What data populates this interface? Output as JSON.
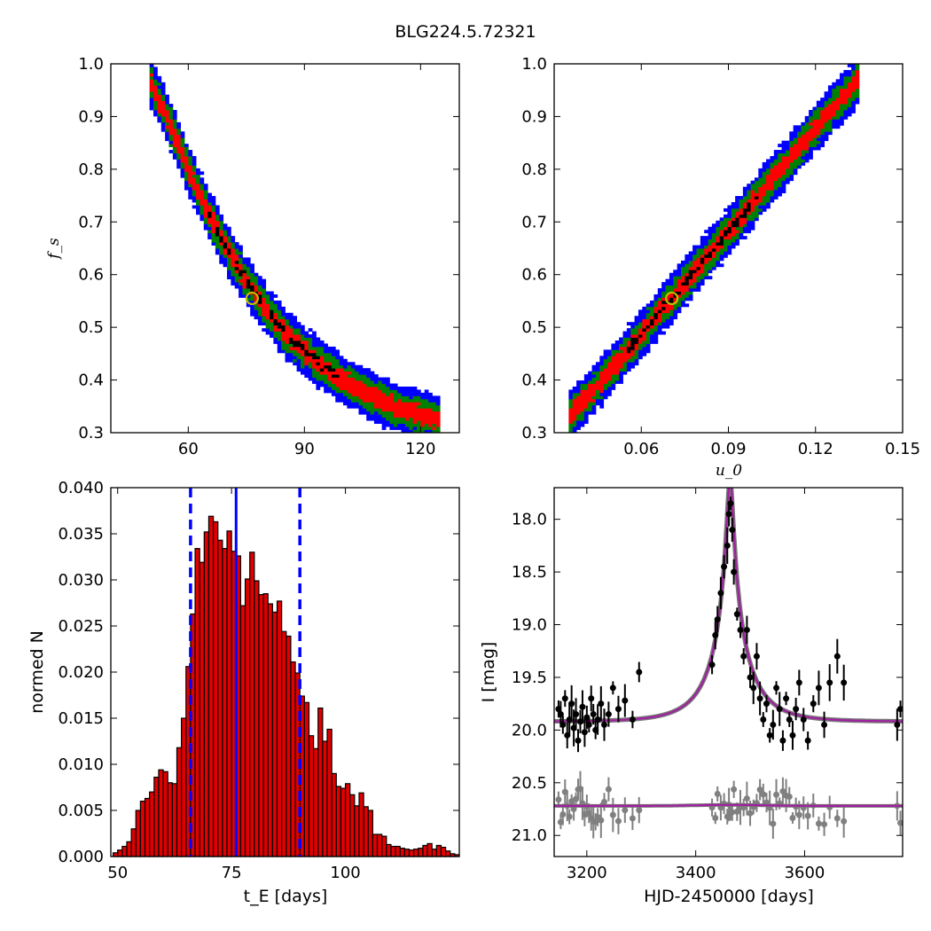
{
  "figure_title": "BLG224.5.72321",
  "chart_data": [
    {
      "type": "heatmap",
      "panel": "fs-vs-tE",
      "xlabel": "",
      "ylabel": "f_s",
      "xlim": [
        40,
        130
      ],
      "ylim": [
        0.3,
        1.0
      ],
      "xticks": [
        60,
        90,
        120
      ],
      "yticks": [
        0.3,
        0.4,
        0.5,
        0.6,
        0.7,
        0.8,
        0.9,
        1.0
      ],
      "colors": {
        "sigma3": "#0000ff",
        "sigma2": "#008000",
        "sigma1": "#ff0000",
        "best": "#000000",
        "marker": "#bfbf00"
      },
      "ridge": {
        "x": [
          50,
          55,
          60,
          65,
          70,
          75,
          80,
          85,
          90,
          95,
          100,
          105,
          110,
          115,
          120,
          125
        ],
        "y": [
          0.97,
          0.89,
          0.8,
          0.72,
          0.65,
          0.59,
          0.535,
          0.49,
          0.455,
          0.425,
          0.4,
          0.38,
          0.36,
          0.345,
          0.335,
          0.325
        ]
      },
      "best_fit": [
        76.5,
        0.555
      ]
    },
    {
      "type": "heatmap",
      "panel": "fs-vs-u0",
      "xlabel": "u_0",
      "ylabel": "",
      "xlim": [
        0.03,
        0.15
      ],
      "ylim": [
        0.3,
        1.0
      ],
      "xticks": [
        0.06,
        0.09,
        0.12,
        0.15
      ],
      "yticks": [
        0.3,
        0.4,
        0.5,
        0.6,
        0.7,
        0.8,
        0.9,
        1.0
      ],
      "colors": {
        "sigma3": "#0000ff",
        "sigma2": "#008000",
        "sigma1": "#ff0000",
        "best": "#000000",
        "marker": "#bfbf00"
      },
      "ridge": {
        "x": [
          0.035,
          0.045,
          0.055,
          0.065,
          0.075,
          0.085,
          0.095,
          0.105,
          0.115,
          0.125,
          0.135
        ],
        "y": [
          0.33,
          0.39,
          0.455,
          0.52,
          0.585,
          0.65,
          0.715,
          0.78,
          0.845,
          0.91,
          0.97
        ]
      },
      "best_fit": [
        0.0705,
        0.555
      ]
    },
    {
      "type": "bar",
      "panel": "tE-histogram",
      "xlabel": "t_E [days]",
      "ylabel": "normed N",
      "xlim": [
        48.5,
        125
      ],
      "ylim": [
        0.0,
        0.04
      ],
      "xticks": [
        50,
        75,
        100
      ],
      "yticks": [
        0.0,
        0.005,
        0.01,
        0.015,
        0.02,
        0.025,
        0.03,
        0.035,
        0.04
      ],
      "bin_start": 49,
      "bin_width": 1,
      "values": [
        0.0004,
        0.0007,
        0.0011,
        0.0016,
        0.003,
        0.005,
        0.006,
        0.0063,
        0.007,
        0.0086,
        0.0094,
        0.0092,
        0.008,
        0.0079,
        0.0118,
        0.015,
        0.0206,
        0.0263,
        0.0334,
        0.0319,
        0.0352,
        0.0369,
        0.0363,
        0.0343,
        0.0334,
        0.0353,
        0.0331,
        0.0326,
        0.0272,
        0.0301,
        0.033,
        0.0299,
        0.0284,
        0.0285,
        0.0274,
        0.0265,
        0.0277,
        0.0244,
        0.0239,
        0.0211,
        0.0199,
        0.0174,
        0.0167,
        0.0131,
        0.0117,
        0.0161,
        0.0125,
        0.0138,
        0.009,
        0.0076,
        0.0074,
        0.0079,
        0.0067,
        0.0055,
        0.0069,
        0.0054,
        0.005,
        0.0024,
        0.0024,
        0.0022,
        0.0013,
        0.0011,
        0.0011,
        0.0009,
        0.0008,
        0.0007,
        0.0008,
        0.0009,
        0.0012,
        0.0014,
        0.0008,
        0.0012,
        0.001,
        0.0006,
        0.0003,
        0.0002
      ],
      "bar_color": "#e00000",
      "median_line": 76,
      "interval_lines": [
        66,
        90
      ],
      "line_color": "#0000ff"
    },
    {
      "type": "scatter",
      "panel": "light-curve",
      "xlabel": "HJD-2450000 [days]",
      "ylabel": "I [mag]",
      "xlim": [
        3140,
        3780
      ],
      "ylim": [
        21.2,
        17.7
      ],
      "xticks": [
        3200,
        3400,
        3600
      ],
      "yticks": [
        18.0,
        18.5,
        19.0,
        19.5,
        20.0,
        20.5,
        21.0
      ],
      "model": {
        "t0": 3463,
        "u0": 0.07,
        "tE": 76,
        "baseline": 19.92,
        "fs": 0.555
      },
      "comparison_baseline": 20.72,
      "colors": {
        "data": "#000000",
        "comparison": "#808080",
        "model": "#a020a0"
      },
      "points": {
        "x": [
          3148,
          3152,
          3156,
          3160,
          3164,
          3168,
          3172,
          3176,
          3180,
          3184,
          3188,
          3192,
          3196,
          3200,
          3204,
          3208,
          3212,
          3216,
          3220,
          3226,
          3232,
          3240,
          3248,
          3258,
          3270,
          3284,
          3296,
          3430,
          3436,
          3440,
          3446,
          3452,
          3458,
          3461,
          3464,
          3467,
          3470,
          3476,
          3482,
          3488,
          3494,
          3500,
          3506,
          3512,
          3518,
          3524,
          3530,
          3536,
          3542,
          3548,
          3554,
          3560,
          3566,
          3572,
          3578,
          3584,
          3590,
          3598,
          3606,
          3616,
          3626,
          3636,
          3646,
          3660,
          3672,
          3770,
          3776
        ],
        "y": [
          19.8,
          19.85,
          19.95,
          19.7,
          20.05,
          19.9,
          19.75,
          19.98,
          19.85,
          20.1,
          19.92,
          19.78,
          20.02,
          19.88,
          19.95,
          19.7,
          19.85,
          20.0,
          19.9,
          19.75,
          19.95,
          19.85,
          19.6,
          19.8,
          19.72,
          19.9,
          19.45,
          19.38,
          19.1,
          18.95,
          18.7,
          18.45,
          18.25,
          17.95,
          17.85,
          18.1,
          18.5,
          18.9,
          19.05,
          19.3,
          19.05,
          19.5,
          19.6,
          19.3,
          19.7,
          19.9,
          19.75,
          20.05,
          19.95,
          19.6,
          19.8,
          20.1,
          19.7,
          19.9,
          20.05,
          19.8,
          19.55,
          19.9,
          20.1,
          19.75,
          19.6,
          19.95,
          19.55,
          19.3,
          19.55,
          19.95,
          19.8
        ]
      }
    }
  ]
}
